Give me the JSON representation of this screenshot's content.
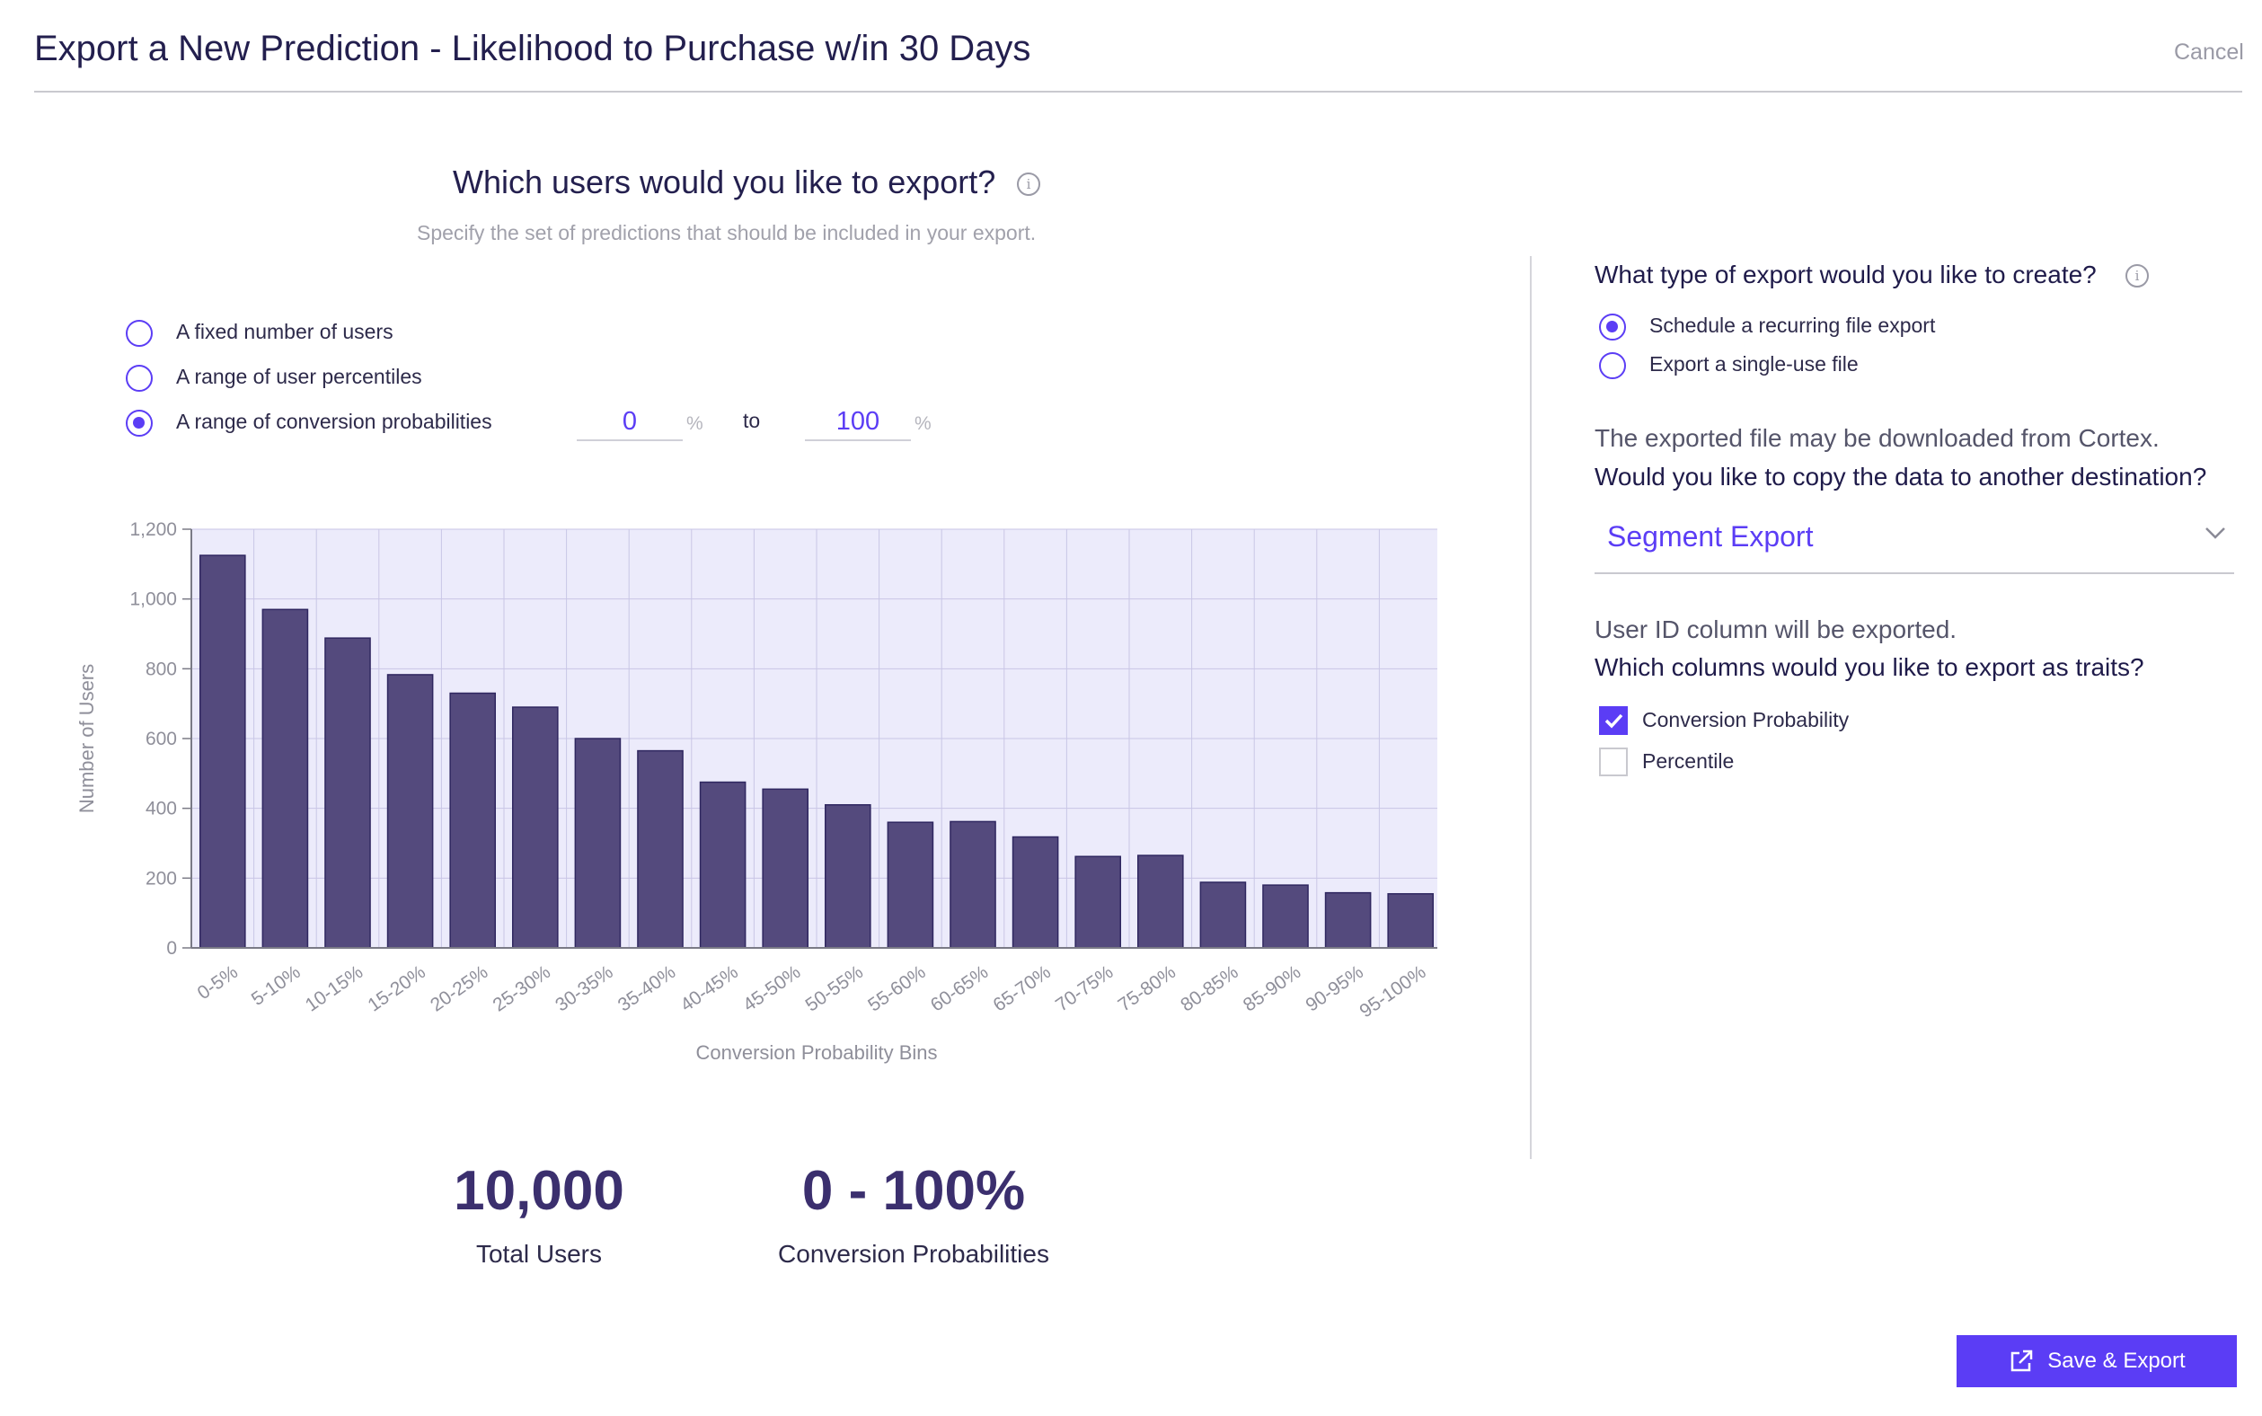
{
  "header": {
    "title": "Export a New Prediction - Likelihood to Purchase w/in 30 Days",
    "cancel_label": "Cancel"
  },
  "left": {
    "question": "Which users would you like to export?",
    "info_glyph": "i",
    "subtitle": "Specify the set of predictions that should be included in your export.",
    "options": [
      {
        "label": "A fixed number of users",
        "selected": false
      },
      {
        "label": "A range of user percentiles",
        "selected": false
      },
      {
        "label": "A range of conversion probabilities",
        "selected": true
      }
    ],
    "range": {
      "from": "0",
      "to": "100",
      "unit": "%",
      "to_label": "to"
    }
  },
  "chart_data": {
    "type": "bar",
    "categories": [
      "0-5%",
      "5-10%",
      "10-15%",
      "15-20%",
      "20-25%",
      "25-30%",
      "30-35%",
      "35-40%",
      "40-45%",
      "45-50%",
      "50-55%",
      "55-60%",
      "60-65%",
      "65-70%",
      "70-75%",
      "75-80%",
      "80-85%",
      "85-90%",
      "90-95%",
      "95-100%"
    ],
    "values": [
      1125,
      970,
      888,
      783,
      730,
      690,
      600,
      565,
      475,
      455,
      410,
      360,
      362,
      318,
      262,
      265,
      188,
      180,
      158,
      155
    ],
    "yticks": [
      "0",
      "200",
      "400",
      "600",
      "800",
      "1,000",
      "1,200"
    ],
    "ylim": [
      0,
      1200
    ],
    "xlabel": "Conversion Probability Bins",
    "ylabel": "Number of Users",
    "grid": true,
    "bar_color": "#544a7d",
    "plot_bg": "#ecebfb"
  },
  "stats": {
    "total_users": "10,000",
    "total_users_label": "Total Users",
    "range": "0 - 100%",
    "range_label": "Conversion Probabilities"
  },
  "right": {
    "export_type_question": "What type of export would you like to create?",
    "export_types": [
      {
        "label": "Schedule a recurring file export",
        "selected": true
      },
      {
        "label": "Export a single-use file",
        "selected": false
      }
    ],
    "download_note": "The exported file may be downloaded from Cortex.",
    "copy_question": "Would you like to copy the data to another destination?",
    "destination": "Segment Export",
    "userid_note": "User ID column will be exported.",
    "traits_question": "Which columns would you like to export as traits?",
    "traits": [
      {
        "label": "Conversion Probability",
        "checked": true
      },
      {
        "label": "Percentile",
        "checked": false
      }
    ]
  },
  "footer": {
    "save_label": "Save & Export",
    "save_icon": "external-link-icon"
  },
  "colors": {
    "accent": "#5b3df5",
    "bar": "#544a7d",
    "heading": "#231f4e"
  }
}
